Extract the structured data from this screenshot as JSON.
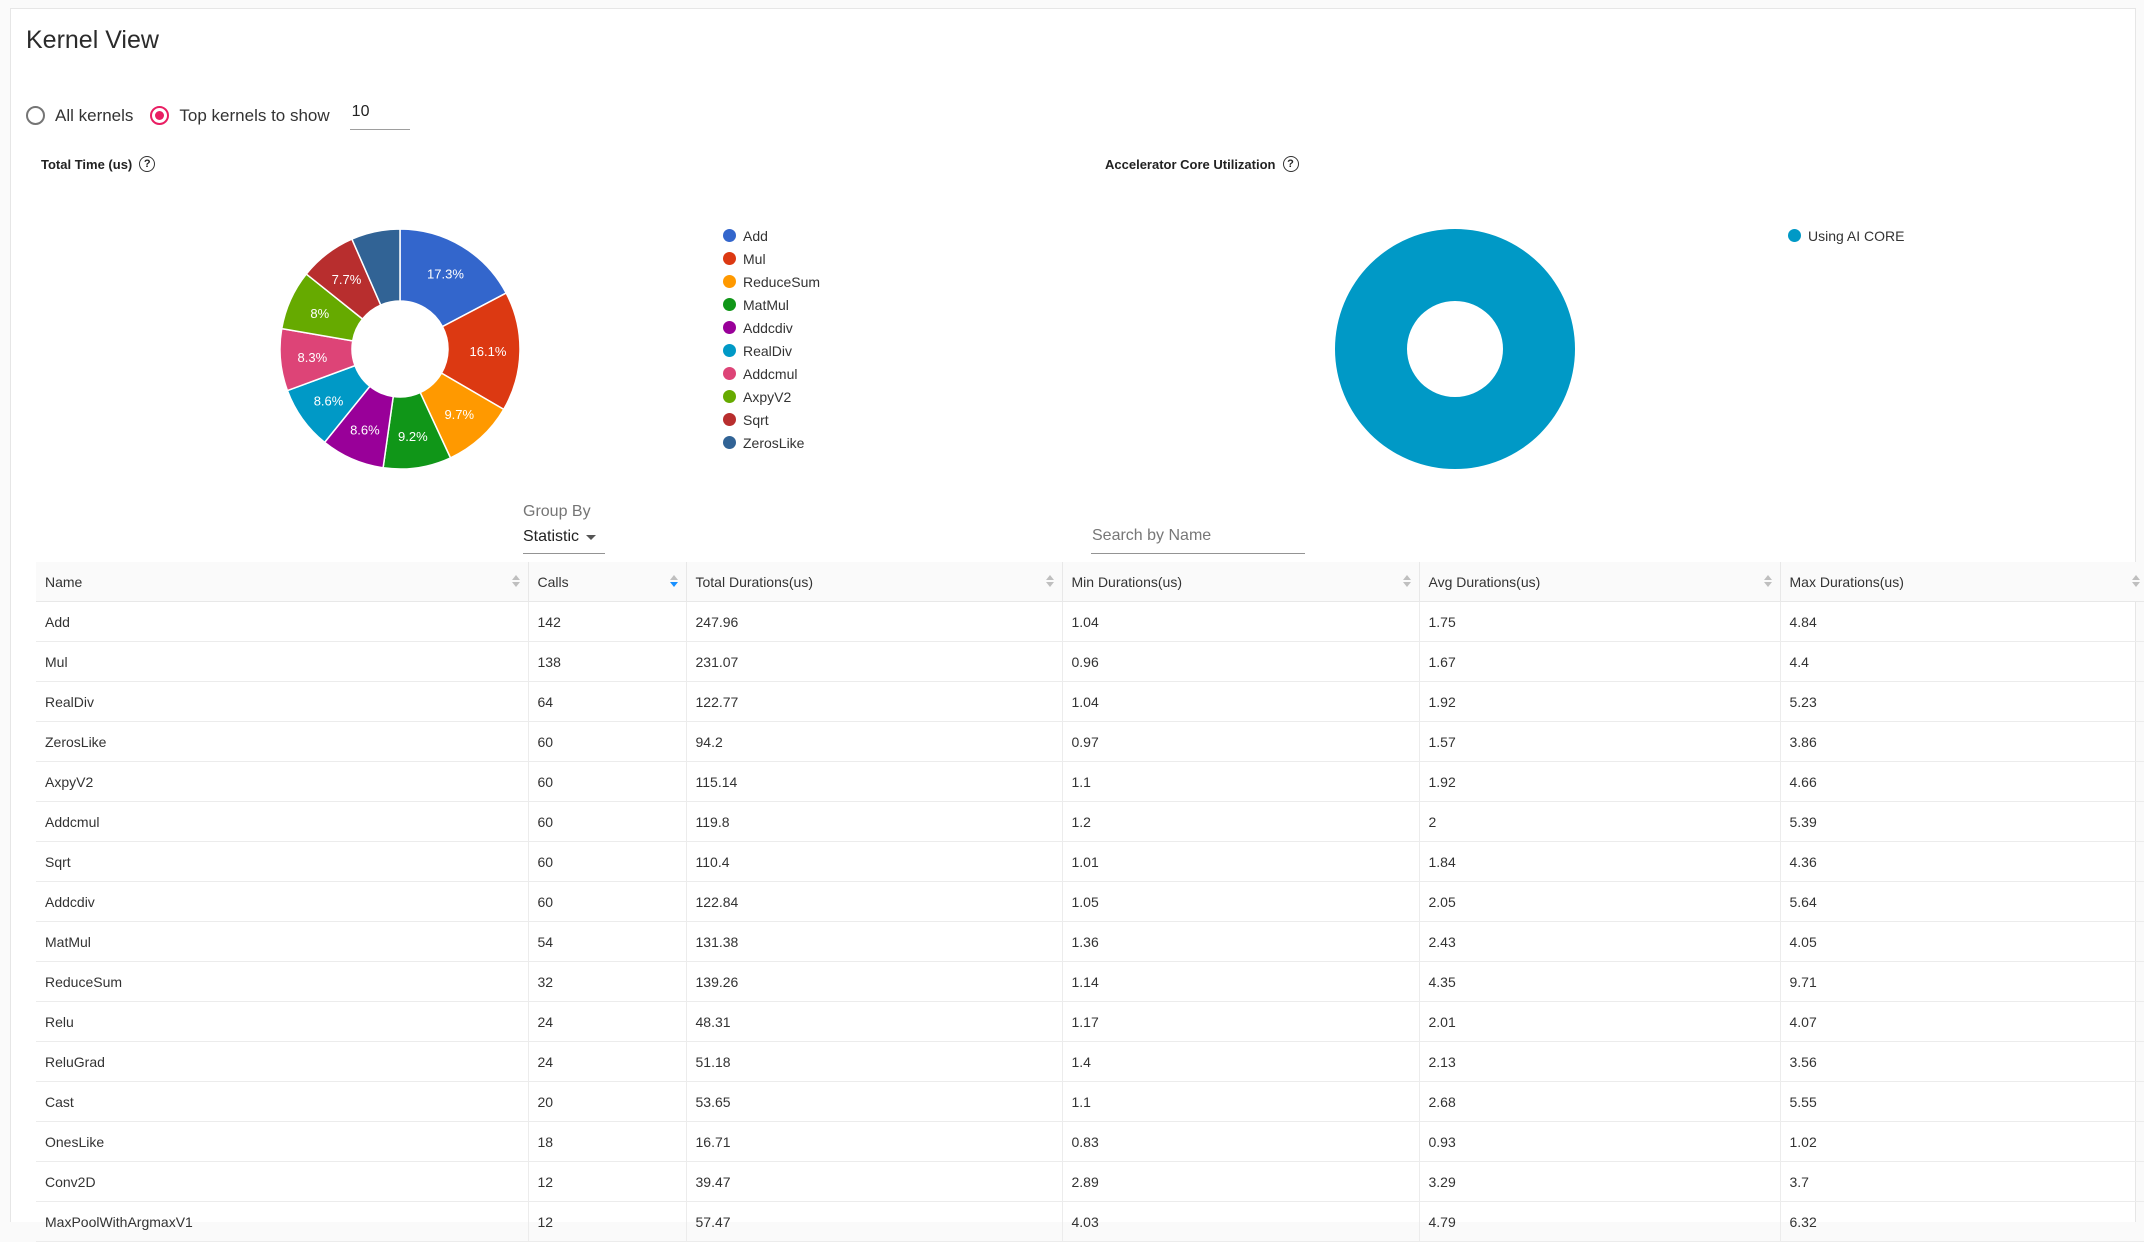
{
  "page": {
    "title": "Kernel View"
  },
  "filters": {
    "all_kernels_label": "All kernels",
    "top_kernels_label": "Top kernels to show",
    "top_kernels_value": "10",
    "selected": "top"
  },
  "total_time_chart": {
    "title": "Total Time (us)",
    "chart_data": {
      "type": "pie",
      "title": "Total Time (us)",
      "categories": [
        "Add",
        "Mul",
        "ReduceSum",
        "MatMul",
        "Addcdiv",
        "RealDiv",
        "Addcmul",
        "AxpyV2",
        "Sqrt",
        "ZerosLike"
      ],
      "values": [
        247.96,
        231.07,
        139.26,
        131.38,
        122.84,
        122.77,
        119.8,
        115.14,
        110.4,
        94.2
      ],
      "labels": [
        "17.3%",
        "16.1%",
        "9.7%",
        "9.2%",
        "8.6%",
        "8.6%",
        "8.3%",
        "8%",
        "7.7%",
        ""
      ],
      "colors": [
        "#3366cc",
        "#dc3912",
        "#ff9900",
        "#109618",
        "#990099",
        "#0099c6",
        "#dd4477",
        "#66aa00",
        "#b82e2e",
        "#316395"
      ],
      "legend": "right"
    }
  },
  "core_util_chart": {
    "title": "Accelerator Core Utilization",
    "chart_data": {
      "type": "pie",
      "title": "Accelerator Core Utilization",
      "categories": [
        "Using AI CORE"
      ],
      "values": [
        1
      ],
      "colors": [
        "#0099c6"
      ],
      "legend": "right"
    }
  },
  "group_by": {
    "label": "Group By",
    "value": "Statistic"
  },
  "search": {
    "placeholder": "Search by Name"
  },
  "table": {
    "columns": [
      "Name",
      "Calls",
      "Total Durations(us)",
      "Min Durations(us)",
      "Avg Durations(us)",
      "Max Durations(us)"
    ],
    "rows": [
      [
        "Add",
        "142",
        "247.96",
        "1.04",
        "1.75",
        "4.84"
      ],
      [
        "Mul",
        "138",
        "231.07",
        "0.96",
        "1.67",
        "4.4"
      ],
      [
        "RealDiv",
        "64",
        "122.77",
        "1.04",
        "1.92",
        "5.23"
      ],
      [
        "ZerosLike",
        "60",
        "94.2",
        "0.97",
        "1.57",
        "3.86"
      ],
      [
        "AxpyV2",
        "60",
        "115.14",
        "1.1",
        "1.92",
        "4.66"
      ],
      [
        "Addcmul",
        "60",
        "119.8",
        "1.2",
        "2",
        "5.39"
      ],
      [
        "Sqrt",
        "60",
        "110.4",
        "1.01",
        "1.84",
        "4.36"
      ],
      [
        "Addcdiv",
        "60",
        "122.84",
        "1.05",
        "2.05",
        "5.64"
      ],
      [
        "MatMul",
        "54",
        "131.38",
        "1.36",
        "2.43",
        "4.05"
      ],
      [
        "ReduceSum",
        "32",
        "139.26",
        "1.14",
        "4.35",
        "9.71"
      ],
      [
        "Relu",
        "24",
        "48.31",
        "1.17",
        "2.01",
        "4.07"
      ],
      [
        "ReluGrad",
        "24",
        "51.18",
        "1.4",
        "2.13",
        "3.56"
      ],
      [
        "Cast",
        "20",
        "53.65",
        "1.1",
        "2.68",
        "5.55"
      ],
      [
        "OnesLike",
        "18",
        "16.71",
        "0.83",
        "0.93",
        "1.02"
      ],
      [
        "Conv2D",
        "12",
        "39.47",
        "2.89",
        "3.29",
        "3.7"
      ],
      [
        "MaxPoolWithArgmaxV1",
        "12",
        "57.47",
        "4.03",
        "4.79",
        "6.32"
      ]
    ]
  }
}
